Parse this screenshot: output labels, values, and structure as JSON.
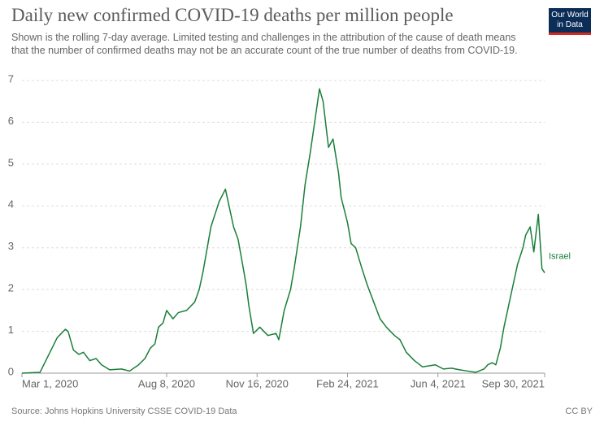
{
  "chart_data": {
    "type": "line",
    "title": "Daily new confirmed COVID-19 deaths per million people",
    "subtitle": "Shown is the rolling 7-day average. Limited testing and challenges in the attribution of the cause of death means that the number of confirmed deaths may not be an accurate count of the true number of deaths from COVID-19.",
    "logo": "Our World in Data",
    "source": "Source: Johns Hopkins University CSSE COVID-19 Data",
    "license": "CC BY",
    "x": [
      "2020-03-01",
      "2020-03-21",
      "2020-04-09",
      "2020-04-18",
      "2020-04-21",
      "2020-04-27",
      "2020-05-03",
      "2020-05-08",
      "2020-05-15",
      "2020-05-22",
      "2020-05-28",
      "2020-06-06",
      "2020-06-19",
      "2020-06-28",
      "2020-07-08",
      "2020-07-15",
      "2020-07-21",
      "2020-07-26",
      "2020-07-30",
      "2020-08-04",
      "2020-08-08",
      "2020-08-15",
      "2020-08-21",
      "2020-08-30",
      "2020-09-08",
      "2020-09-13",
      "2020-09-17",
      "2020-09-26",
      "2020-10-05",
      "2020-10-12",
      "2020-10-16",
      "2020-10-21",
      "2020-10-26",
      "2020-10-31",
      "2020-11-04",
      "2020-11-07",
      "2020-11-12",
      "2020-11-19",
      "2020-11-28",
      "2020-12-07",
      "2020-12-10",
      "2020-12-16",
      "2020-12-23",
      "2020-12-27",
      "2021-01-03",
      "2021-01-08",
      "2021-01-14",
      "2021-01-24",
      "2021-01-28",
      "2021-02-03",
      "2021-02-08",
      "2021-02-14",
      "2021-02-17",
      "2021-02-24",
      "2021-02-28",
      "2021-03-05",
      "2021-03-12",
      "2021-03-18",
      "2021-03-25",
      "2021-04-01",
      "2021-04-08",
      "2021-04-17",
      "2021-04-23",
      "2021-04-30",
      "2021-05-09",
      "2021-05-18",
      "2021-06-01",
      "2021-06-10",
      "2021-06-19",
      "2021-06-28",
      "2021-07-07",
      "2021-07-16",
      "2021-07-25",
      "2021-07-29",
      "2021-08-03",
      "2021-08-07",
      "2021-08-12",
      "2021-08-16",
      "2021-08-21",
      "2021-08-25",
      "2021-08-31",
      "2021-09-06",
      "2021-09-09",
      "2021-09-14",
      "2021-09-18",
      "2021-09-23",
      "2021-09-27",
      "2021-09-30"
    ],
    "series": [
      {
        "name": "Israel",
        "color": "#1a7e3a",
        "values": [
          0,
          0.02,
          0.85,
          1.05,
          1.0,
          0.55,
          0.45,
          0.5,
          0.3,
          0.35,
          0.2,
          0.08,
          0.1,
          0.05,
          0.2,
          0.35,
          0.6,
          0.7,
          1.1,
          1.2,
          1.5,
          1.3,
          1.45,
          1.5,
          1.7,
          2.0,
          2.4,
          3.5,
          4.1,
          4.4,
          4.0,
          3.5,
          3.2,
          2.6,
          2.1,
          1.6,
          0.95,
          1.1,
          0.9,
          0.95,
          0.8,
          1.5,
          2.0,
          2.5,
          3.5,
          4.5,
          5.3,
          6.8,
          6.5,
          5.4,
          5.6,
          4.8,
          4.2,
          3.6,
          3.1,
          3.0,
          2.5,
          2.1,
          1.7,
          1.3,
          1.1,
          0.9,
          0.8,
          0.5,
          0.3,
          0.15,
          0.2,
          0.1,
          0.12,
          0.08,
          0.05,
          0.02,
          0.1,
          0.2,
          0.25,
          0.2,
          0.6,
          1.1,
          1.6,
          2.0,
          2.6,
          3.0,
          3.3,
          3.5,
          2.9,
          3.8,
          2.5,
          2.4
        ]
      }
    ],
    "xlim": [
      "2020-03-01",
      "2021-09-30"
    ],
    "xticks": [
      {
        "value": "2020-03-01",
        "label": "Mar 1, 2020"
      },
      {
        "value": "2020-08-08",
        "label": "Aug 8, 2020"
      },
      {
        "value": "2020-11-16",
        "label": "Nov 16, 2020"
      },
      {
        "value": "2021-02-24",
        "label": "Feb 24, 2021"
      },
      {
        "value": "2021-06-04",
        "label": "Jun 4, 2021"
      },
      {
        "value": "2021-09-30",
        "label": "Sep 30, 2021"
      }
    ],
    "ylim": [
      0,
      7
    ],
    "yticks": [
      0,
      1,
      2,
      3,
      4,
      5,
      6,
      7
    ],
    "grid": true
  }
}
